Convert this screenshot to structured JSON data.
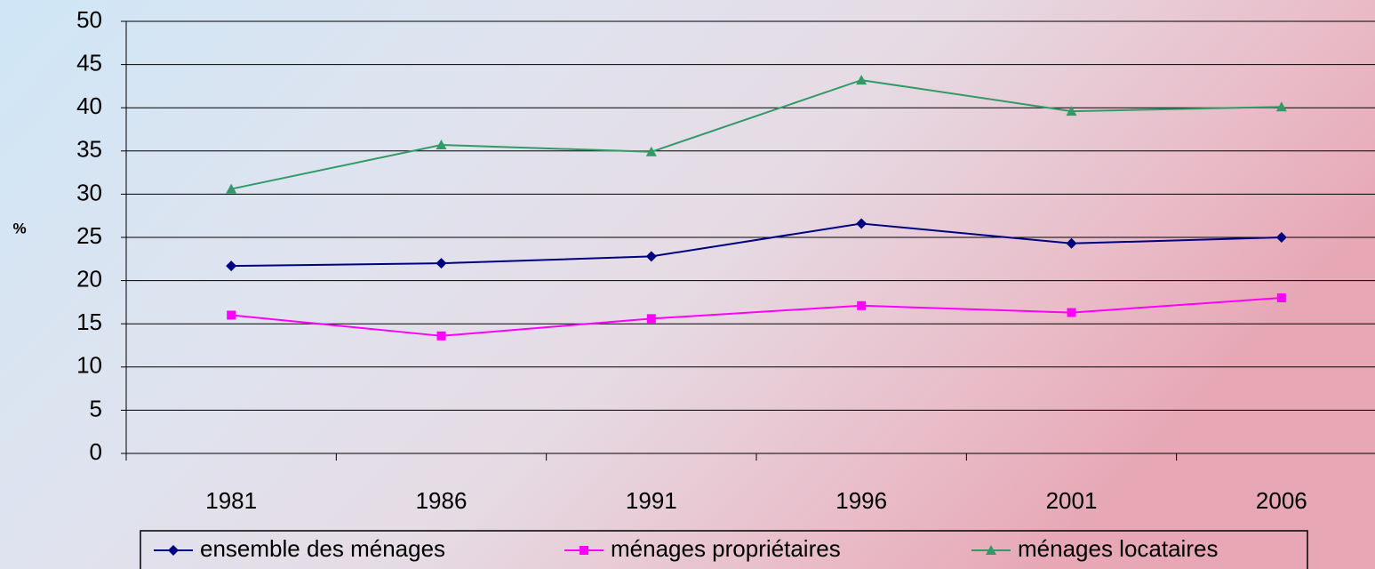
{
  "chart_data": {
    "type": "line",
    "y_label": "%",
    "categories": [
      "1981",
      "1986",
      "1991",
      "1996",
      "2001",
      "2006"
    ],
    "series": [
      {
        "name": "ensemble des ménages",
        "color": "#000080",
        "marker": "diamond",
        "values": [
          21.7,
          22.0,
          22.8,
          26.6,
          24.3,
          25.0
        ]
      },
      {
        "name": "ménages propriétaires",
        "color": "#ff00ff",
        "marker": "square",
        "values": [
          16.0,
          13.6,
          15.6,
          17.1,
          16.3,
          18.0
        ]
      },
      {
        "name": "ménages locataires",
        "color": "#339966",
        "marker": "triangle",
        "values": [
          30.6,
          35.7,
          34.9,
          43.2,
          39.6,
          40.1
        ]
      }
    ],
    "ylim": [
      0,
      50
    ],
    "yticks": [
      0,
      5,
      10,
      15,
      20,
      25,
      30,
      35,
      40,
      45,
      50
    ],
    "grid": true,
    "legend": "bottom"
  }
}
